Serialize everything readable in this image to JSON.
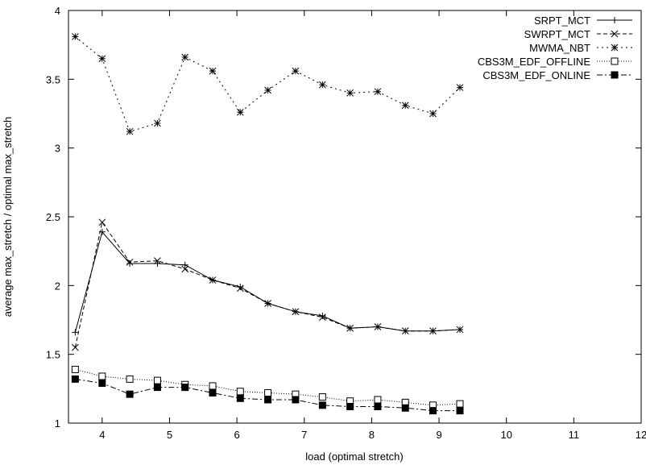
{
  "chart_data": {
    "type": "line",
    "title": "",
    "xlabel": "load (optimal stretch)",
    "ylabel": "average max_stretch / optimal max_stretch",
    "xlim": [
      3.5,
      12
    ],
    "ylim": [
      1,
      4
    ],
    "xticks": [
      4,
      5,
      6,
      7,
      8,
      9,
      10,
      11,
      12
    ],
    "yticks": [
      1,
      1.5,
      2,
      2.5,
      3,
      3.5,
      4
    ],
    "xtick_labels": [
      "4",
      "5",
      "6",
      "7",
      "8",
      "9",
      "10",
      "11",
      "12"
    ],
    "ytick_labels": [
      "1",
      "1.5",
      "2",
      "2.5",
      "3",
      "3.5",
      "4"
    ],
    "grid": false,
    "legend_position": "top-right",
    "x": [
      3.6,
      4.0,
      4.41,
      4.82,
      5.23,
      5.64,
      6.05,
      6.46,
      6.87,
      7.27,
      7.68,
      8.09,
      8.5,
      8.91,
      9.31
    ],
    "series": [
      {
        "name": "SRPT_MCT",
        "marker": "plus",
        "dash": "solid",
        "values": [
          1.66,
          2.39,
          2.16,
          2.16,
          2.15,
          2.04,
          1.99,
          1.87,
          1.81,
          1.78,
          1.69,
          1.7,
          1.67,
          1.67,
          1.68
        ]
      },
      {
        "name": "SWRPT_MCT",
        "marker": "cross",
        "dash": "dashed",
        "values": [
          1.55,
          2.46,
          2.17,
          2.18,
          2.12,
          2.04,
          1.98,
          1.87,
          1.81,
          1.77,
          1.69,
          1.7,
          1.67,
          1.67,
          1.68
        ]
      },
      {
        "name": "MWMA_NBT",
        "marker": "star",
        "dash": "dotted",
        "values": [
          3.81,
          3.65,
          3.12,
          3.18,
          3.66,
          3.56,
          3.26,
          3.42,
          3.56,
          3.46,
          3.4,
          3.41,
          3.31,
          3.25,
          3.44
        ]
      },
      {
        "name": "CBS3M_EDF_OFFLINE",
        "marker": "open-square",
        "dash": "fine-dotted",
        "values": [
          1.39,
          1.34,
          1.32,
          1.31,
          1.28,
          1.27,
          1.23,
          1.22,
          1.21,
          1.19,
          1.16,
          1.17,
          1.15,
          1.13,
          1.14
        ]
      },
      {
        "name": "CBS3M_EDF_ONLINE",
        "marker": "filled-square",
        "dash": "dash-dot",
        "values": [
          1.32,
          1.29,
          1.21,
          1.26,
          1.26,
          1.22,
          1.18,
          1.17,
          1.17,
          1.13,
          1.12,
          1.12,
          1.11,
          1.09,
          1.09
        ]
      }
    ]
  }
}
